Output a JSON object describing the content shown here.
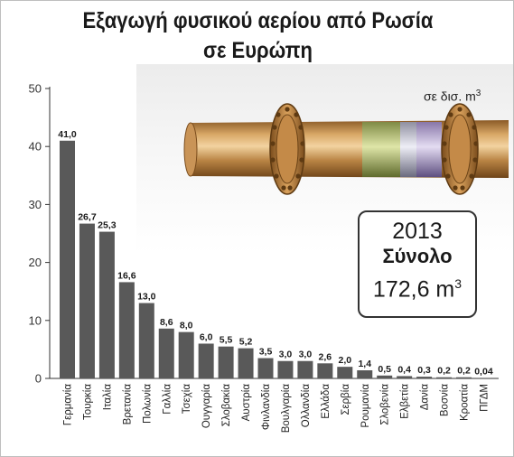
{
  "chart_data": {
    "type": "bar",
    "title": "Εξαγωγή φυσικού αερίου από Ρωσία σε Ευρώπη",
    "title_lines": [
      "Εξαγωγή φυσικού αερίου από Ρωσία",
      "σε Ευρώπη"
    ],
    "unit_label": "σε δισ. m",
    "unit_sup": "3",
    "ylim": [
      0,
      50
    ],
    "yticks": [
      0,
      10,
      20,
      30,
      40,
      50
    ],
    "grid": false,
    "categories": [
      "Γερμανία",
      "Τουρκία",
      "Ιταλία",
      "Βρετανία",
      "Πολωνία",
      "Γαλλία",
      "Τσεχία",
      "Ουγγαρία",
      "Σλοβακία",
      "Αυστρία",
      "Φινλανδία",
      "Βουλγαρία",
      "Ολλανδία",
      "Ελλάδα",
      "Σερβία",
      "Ρουμανία",
      "Σλοβενία",
      "Ελβετία",
      "Δανία",
      "Βοσνία",
      "Κροατία",
      "ΠΓΔΜ"
    ],
    "values": [
      41.0,
      26.7,
      25.3,
      16.6,
      13.0,
      8.6,
      8.0,
      6.0,
      5.5,
      5.2,
      3.5,
      3.0,
      3.0,
      2.6,
      2.0,
      1.4,
      0.5,
      0.4,
      0.3,
      0.2,
      0.2,
      0.04
    ],
    "value_labels": [
      "41,0",
      "26,7",
      "25,3",
      "16,6",
      "13,0",
      "8,6",
      "8,0",
      "6,0",
      "5,5",
      "5,2",
      "3,5",
      "3,0",
      "3,0",
      "2,6",
      "2,0",
      "1,4",
      "0,5",
      "0,4",
      "0,3",
      "0,2",
      "0,2",
      "0,04"
    ],
    "bar_color": "#595959"
  },
  "total_box": {
    "year": "2013",
    "label": "Σύνολο",
    "value": "172,6 m",
    "value_sup": "3"
  },
  "colors": {
    "bar": "#595959",
    "pipe": "#b07a3c",
    "flange": "#b57838"
  },
  "decoration": {
    "illustration": "gas-pipeline-icon"
  }
}
